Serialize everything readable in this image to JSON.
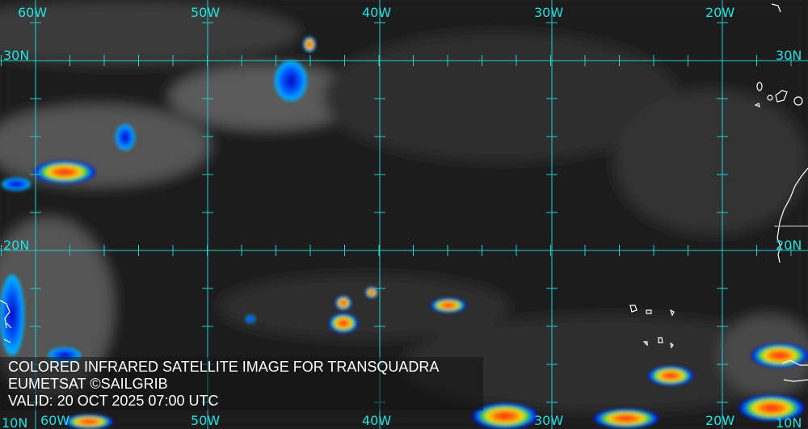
{
  "caption": {
    "title": "COLORED INFRARED SATELLITE IMAGE FOR TRANSQUADRA",
    "credit": "EUMETSAT ©SAILGRIB",
    "valid": "VALID:  20 OCT 2025 07:00 UTC"
  },
  "grid": {
    "longitudes": [
      "60W",
      "50W",
      "40W",
      "30W",
      "20W"
    ],
    "latitudes": [
      "30N",
      "20N",
      "10N"
    ],
    "line_color": "#22d0d0"
  },
  "colors": {
    "cold_cloud_scale": [
      "#0000c0",
      "#0060ff",
      "#00c0ff",
      "#30d030",
      "#f0e020",
      "#ff8000",
      "#ff2020"
    ],
    "coastline": "#ffffff"
  }
}
